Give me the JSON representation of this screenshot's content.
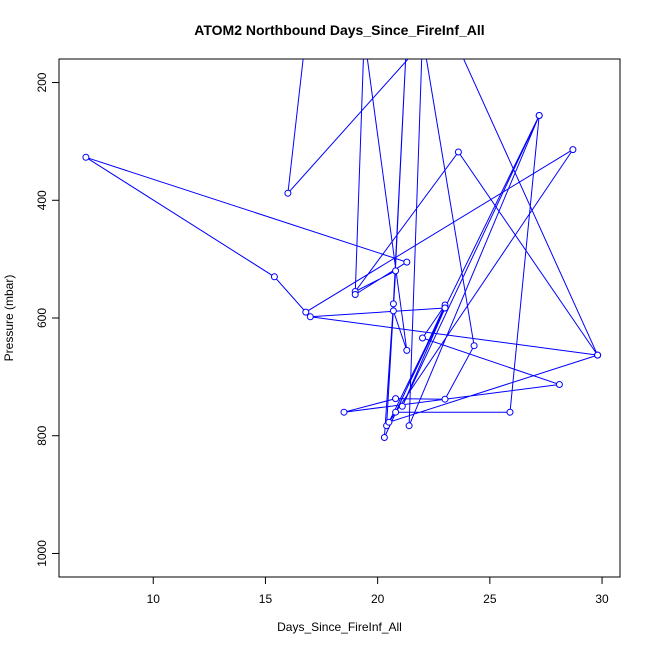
{
  "chart_data": {
    "type": "line",
    "title": "ATOM2 Northbound Days_Since_FireInf_All",
    "xlabel": "Days_Since_FireInf_All",
    "ylabel": "Pressure (mbar)",
    "xlim": [
      5.8,
      30.8
    ],
    "ylim": [
      1040,
      160
    ],
    "y_reversed": true,
    "x_ticks": [
      10,
      15,
      20,
      25,
      30
    ],
    "y_ticks": [
      200,
      400,
      600,
      800,
      1000
    ],
    "grid": false,
    "legend": "none",
    "series": [
      {
        "color": "#0000ff",
        "marker": "open-circle",
        "points": [
          [
            16.8,
            120
          ],
          [
            16.0,
            388
          ],
          [
            23.0,
            90
          ],
          [
            29.8,
            663
          ],
          [
            23.6,
            318
          ],
          [
            19.0,
            555
          ],
          [
            20.8,
            520
          ],
          [
            20.4,
            783
          ],
          [
            28.7,
            314
          ],
          [
            16.8,
            590
          ],
          [
            15.4,
            530
          ],
          [
            7.0,
            327
          ],
          [
            21.3,
            505
          ],
          [
            19.0,
            560
          ],
          [
            19.4,
            120
          ],
          [
            21.3,
            655
          ],
          [
            20.7,
            588
          ],
          [
            21.3,
            120
          ],
          [
            20.7,
            576
          ],
          [
            20.3,
            803
          ],
          [
            23.0,
            578
          ],
          [
            22.0,
            634
          ],
          [
            28.1,
            713
          ],
          [
            18.5,
            760
          ],
          [
            20.8,
            737
          ],
          [
            23.0,
            738
          ],
          [
            24.3,
            647
          ],
          [
            22.0,
            120
          ],
          [
            21.4,
            783
          ],
          [
            27.2,
            256
          ],
          [
            25.9,
            760
          ],
          [
            20.8,
            760
          ],
          [
            23.0,
            583
          ],
          [
            21.1,
            750
          ],
          [
            27.2,
            256
          ],
          [
            20.5,
            777
          ],
          [
            29.8,
            663
          ],
          [
            17.0,
            598
          ],
          [
            23.0,
            583
          ]
        ]
      }
    ]
  }
}
